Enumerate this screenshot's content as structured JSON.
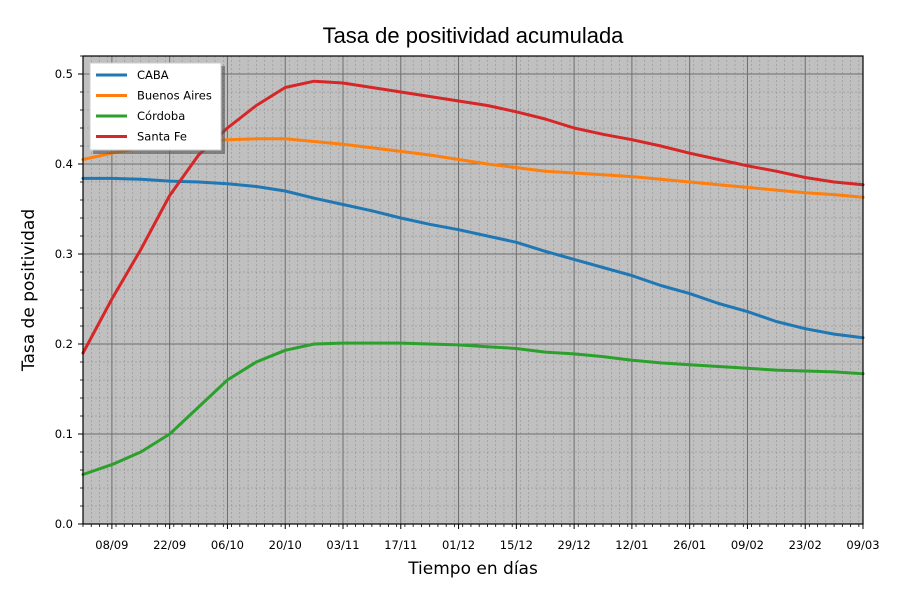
{
  "chart_data": {
    "type": "line",
    "title": "Tasa de positividad acumulada",
    "xlabel": "Tiempo en días",
    "ylabel": "Tasa de positividad",
    "x_ticks": [
      "08/09",
      "22/09",
      "06/10",
      "20/10",
      "03/11",
      "17/11",
      "01/12",
      "15/12",
      "29/12",
      "12/01",
      "26/01",
      "09/02",
      "23/02",
      "09/03"
    ],
    "x_range": [
      "2020-09-01",
      "2021-03-09"
    ],
    "ylim": [
      0.0,
      0.52
    ],
    "y_ticks": [
      "0.0",
      "0.1",
      "0.2",
      "0.3",
      "0.4",
      "0.5"
    ],
    "grid": true,
    "legend_position": "top-left",
    "x": [
      "01/09",
      "08/09",
      "15/09",
      "22/09",
      "29/09",
      "06/10",
      "13/10",
      "20/10",
      "27/10",
      "03/11",
      "10/11",
      "17/11",
      "24/11",
      "01/12",
      "08/12",
      "15/12",
      "22/12",
      "29/12",
      "05/01",
      "12/01",
      "19/01",
      "26/01",
      "02/02",
      "09/02",
      "16/02",
      "23/02",
      "02/03",
      "09/03"
    ],
    "series": [
      {
        "name": "CABA",
        "color": "#1f77b4",
        "values": [
          0.384,
          0.384,
          0.383,
          0.381,
          0.38,
          0.378,
          0.375,
          0.37,
          0.362,
          0.355,
          0.348,
          0.34,
          0.333,
          0.327,
          0.32,
          0.313,
          0.303,
          0.294,
          0.285,
          0.276,
          0.265,
          0.256,
          0.245,
          0.236,
          0.225,
          0.217,
          0.211,
          0.207
        ]
      },
      {
        "name": "Buenos Aires",
        "color": "#ff7f0e",
        "values": [
          0.405,
          0.412,
          0.418,
          0.422,
          0.425,
          0.427,
          0.428,
          0.428,
          0.425,
          0.422,
          0.418,
          0.414,
          0.41,
          0.405,
          0.4,
          0.396,
          0.392,
          0.39,
          0.388,
          0.386,
          0.383,
          0.38,
          0.377,
          0.374,
          0.371,
          0.368,
          0.366,
          0.363
        ]
      },
      {
        "name": "Córdoba",
        "color": "#2ca02c",
        "values": [
          0.055,
          0.066,
          0.08,
          0.1,
          0.13,
          0.16,
          0.18,
          0.193,
          0.2,
          0.201,
          0.201,
          0.201,
          0.2,
          0.199,
          0.197,
          0.195,
          0.191,
          0.189,
          0.186,
          0.182,
          0.179,
          0.177,
          0.175,
          0.173,
          0.171,
          0.17,
          0.169,
          0.167
        ]
      },
      {
        "name": "Santa Fe",
        "color": "#d62728",
        "values": [
          0.19,
          0.25,
          0.305,
          0.365,
          0.41,
          0.44,
          0.465,
          0.485,
          0.492,
          0.49,
          0.485,
          0.48,
          0.475,
          0.47,
          0.465,
          0.458,
          0.45,
          0.44,
          0.433,
          0.427,
          0.42,
          0.412,
          0.405,
          0.398,
          0.392,
          0.385,
          0.38,
          0.377
        ]
      }
    ]
  }
}
